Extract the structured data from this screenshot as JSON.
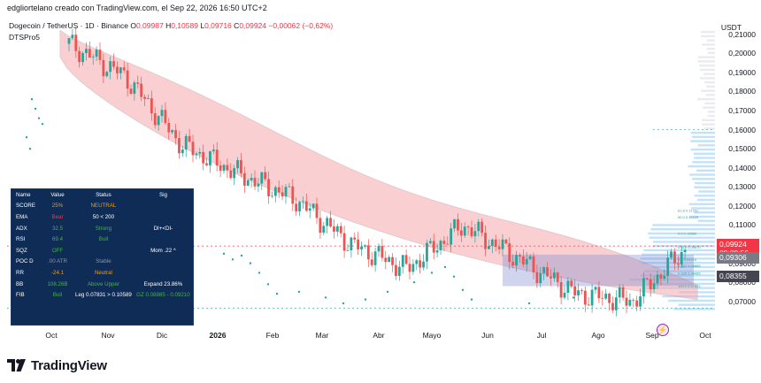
{
  "header": {
    "author_line": "edgliortelano creado con TradingView.com, el Sep 22, 2026 16:50 UTC+2"
  },
  "legend": {
    "symbol": "Dogecoin / TetherUS · 1D · Binance",
    "o_label": "O",
    "o_value": "0,09987",
    "h_label": "H",
    "h_value": "0,10589",
    "l_label": "L",
    "l_value": "0,09716",
    "c_label": "C",
    "c_value": "0,09924",
    "change": "−0,00062 (−0,62%)",
    "indicator": "DTSPro5"
  },
  "price_axis": {
    "currency": "USDT",
    "ticks": [
      "0,21000",
      "0,20000",
      "0,19000",
      "0,18000",
      "0,17000",
      "0,16000",
      "0,15000",
      "0,14000",
      "0,13000",
      "0,12000",
      "0,11000",
      "0,10000",
      "0,09000",
      "0,08000",
      "0,07000"
    ],
    "last_price": "0,09924",
    "countdown": "09:09:56",
    "tag_mid": "0,09306",
    "tag_low": "0,08355"
  },
  "time_axis": {
    "labels": [
      "Oct",
      "Nov",
      "Dic",
      "2026",
      "Feb",
      "Mar",
      "Abr",
      "Mayo",
      "Jun",
      "Jul",
      "Ago",
      "Sep",
      "Oct"
    ]
  },
  "info_table": {
    "headers": [
      "Name",
      "Value",
      "Status",
      "Sig"
    ],
    "rows": [
      [
        "SCORE",
        "25%",
        "NEUTRAL",
        ""
      ],
      [
        "EMA",
        "Bear",
        "50 < 200",
        ""
      ],
      [
        "ADX",
        "32.5",
        "Strong",
        "DI+<DI-"
      ],
      [
        "RSI",
        "69.4",
        "Bull",
        ""
      ],
      [
        "SQZ",
        "OFF",
        "",
        "Mom .22 ^"
      ],
      [
        "POC D",
        ".00 ATR",
        "Stable",
        ""
      ],
      [
        "RR",
        "-24.1",
        "Neutral",
        ""
      ],
      [
        "BB",
        "108.26B",
        "Above Upper",
        "Expand 23.86%"
      ],
      [
        "FIB",
        "Bull",
        "Leg 0.07831 > 0.10589",
        "GZ 0.08885 - 0.09210"
      ]
    ]
  },
  "fib_labels": {
    "f1": "61.8 0.11791",
    "f2": "50.0 0.11429",
    "f3": "0.0 0.10589",
    "f4": "0.618 0.09870",
    "f5": "0.5 0.09210",
    "f6": "0.382 0.08885",
    "f7": "0.236 0.08485",
    "f8": "100.0 0.07831"
  },
  "logo_text": "TradingView",
  "chart_data": {
    "type": "candlestick",
    "x": [
      "Oct",
      "Nov",
      "Dic",
      "2026",
      "Feb",
      "Mar",
      "Abr",
      "Mayo",
      "Jun",
      "Jul",
      "Ago",
      "Sep"
    ],
    "close": [
      0.205,
      0.188,
      0.152,
      0.137,
      0.124,
      0.1,
      0.087,
      0.11,
      0.092,
      0.074,
      0.07,
      0.099
    ],
    "ylim": [
      0.062,
      0.215
    ],
    "last_close": 0.09924,
    "colors": {
      "up": "#26a69a",
      "down": "#ef5350",
      "cloud": "#f7a8ae",
      "profile": "#90caf9"
    }
  }
}
